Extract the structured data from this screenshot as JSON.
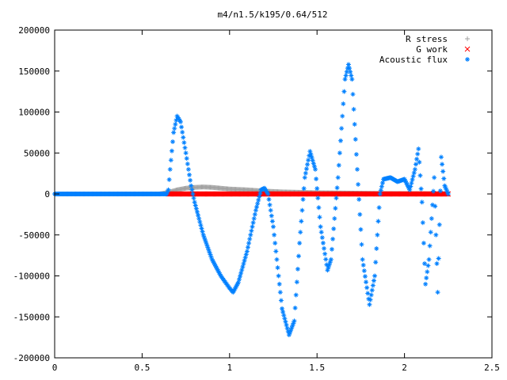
{
  "chart_data": {
    "type": "scatter",
    "title": "m4/n1.5/k195/0.64/512",
    "xlabel": "",
    "ylabel": "",
    "xlim": [
      0,
      2.5
    ],
    "ylim": [
      -200000,
      200000
    ],
    "xticks": [
      0,
      0.5,
      1,
      1.5,
      2,
      2.5
    ],
    "xtick_labels": [
      "0",
      "0.5",
      "1",
      "1.5",
      "2",
      "2.5"
    ],
    "yticks": [
      -200000,
      -150000,
      -100000,
      -50000,
      0,
      50000,
      100000,
      150000,
      200000
    ],
    "ytick_labels": [
      "-200000",
      "-150000",
      "-100000",
      "-50000",
      "0",
      "50000",
      "100000",
      "150000",
      "200000"
    ],
    "grid": false,
    "legend_position": "top-right",
    "series": [
      {
        "name": "R stress",
        "marker": "+",
        "color": "#a0a0a0",
        "x_range": [
          0,
          2.25
        ],
        "points": [
          [
            0,
            0
          ],
          [
            0.6,
            0
          ],
          [
            0.65,
            2000
          ],
          [
            0.7,
            5000
          ],
          [
            0.75,
            7000
          ],
          [
            0.8,
            8000
          ],
          [
            0.85,
            8500
          ],
          [
            0.9,
            8000
          ],
          [
            0.95,
            7000
          ],
          [
            1.0,
            6000
          ],
          [
            1.1,
            5000
          ],
          [
            1.2,
            3500
          ],
          [
            1.3,
            2500
          ],
          [
            1.4,
            2000
          ],
          [
            1.5,
            1500
          ],
          [
            1.7,
            1000
          ],
          [
            1.9,
            500
          ],
          [
            2.1,
            300
          ],
          [
            2.25,
            0
          ]
        ]
      },
      {
        "name": "G work",
        "marker": "x",
        "color": "#ff0000",
        "x_range": [
          0.65,
          2.25
        ],
        "points": [
          [
            0.65,
            0
          ],
          [
            2.25,
            0
          ]
        ]
      },
      {
        "name": "Acoustic flux",
        "marker": "*",
        "color": "#0080ff",
        "x_range": [
          0,
          2.25
        ],
        "points": [
          [
            0,
            0
          ],
          [
            0.64,
            0
          ],
          [
            0.65,
            5000
          ],
          [
            0.66,
            30000
          ],
          [
            0.68,
            75000
          ],
          [
            0.7,
            95000
          ],
          [
            0.72,
            88000
          ],
          [
            0.75,
            50000
          ],
          [
            0.78,
            10000
          ],
          [
            0.8,
            -10000
          ],
          [
            0.85,
            -50000
          ],
          [
            0.9,
            -80000
          ],
          [
            0.95,
            -100000
          ],
          [
            1.0,
            -115000
          ],
          [
            1.02,
            -120000
          ],
          [
            1.05,
            -108000
          ],
          [
            1.1,
            -70000
          ],
          [
            1.15,
            -20000
          ],
          [
            1.18,
            5000
          ],
          [
            1.2,
            7000
          ],
          [
            1.22,
            0
          ],
          [
            1.25,
            -40000
          ],
          [
            1.3,
            -140000
          ],
          [
            1.34,
            -172000
          ],
          [
            1.37,
            -155000
          ],
          [
            1.4,
            -60000
          ],
          [
            1.43,
            20000
          ],
          [
            1.46,
            52000
          ],
          [
            1.49,
            30000
          ],
          [
            1.52,
            -40000
          ],
          [
            1.56,
            -93000
          ],
          [
            1.58,
            -80000
          ],
          [
            1.62,
            20000
          ],
          [
            1.66,
            140000
          ],
          [
            1.68,
            158000
          ],
          [
            1.7,
            140000
          ],
          [
            1.73,
            30000
          ],
          [
            1.76,
            -80000
          ],
          [
            1.8,
            -135000
          ],
          [
            1.83,
            -100000
          ],
          [
            1.86,
            0
          ],
          [
            1.88,
            18000
          ],
          [
            1.92,
            20000
          ],
          [
            1.96,
            15000
          ],
          [
            2.0,
            18000
          ],
          [
            2.03,
            5000
          ],
          [
            2.06,
            30000
          ],
          [
            2.08,
            55000
          ],
          [
            2.1,
            -10000
          ],
          [
            2.12,
            -110000
          ],
          [
            2.14,
            -80000
          ],
          [
            2.17,
            20000
          ],
          [
            2.19,
            -120000
          ],
          [
            2.21,
            45000
          ],
          [
            2.23,
            10000
          ],
          [
            2.25,
            0
          ]
        ]
      }
    ]
  }
}
